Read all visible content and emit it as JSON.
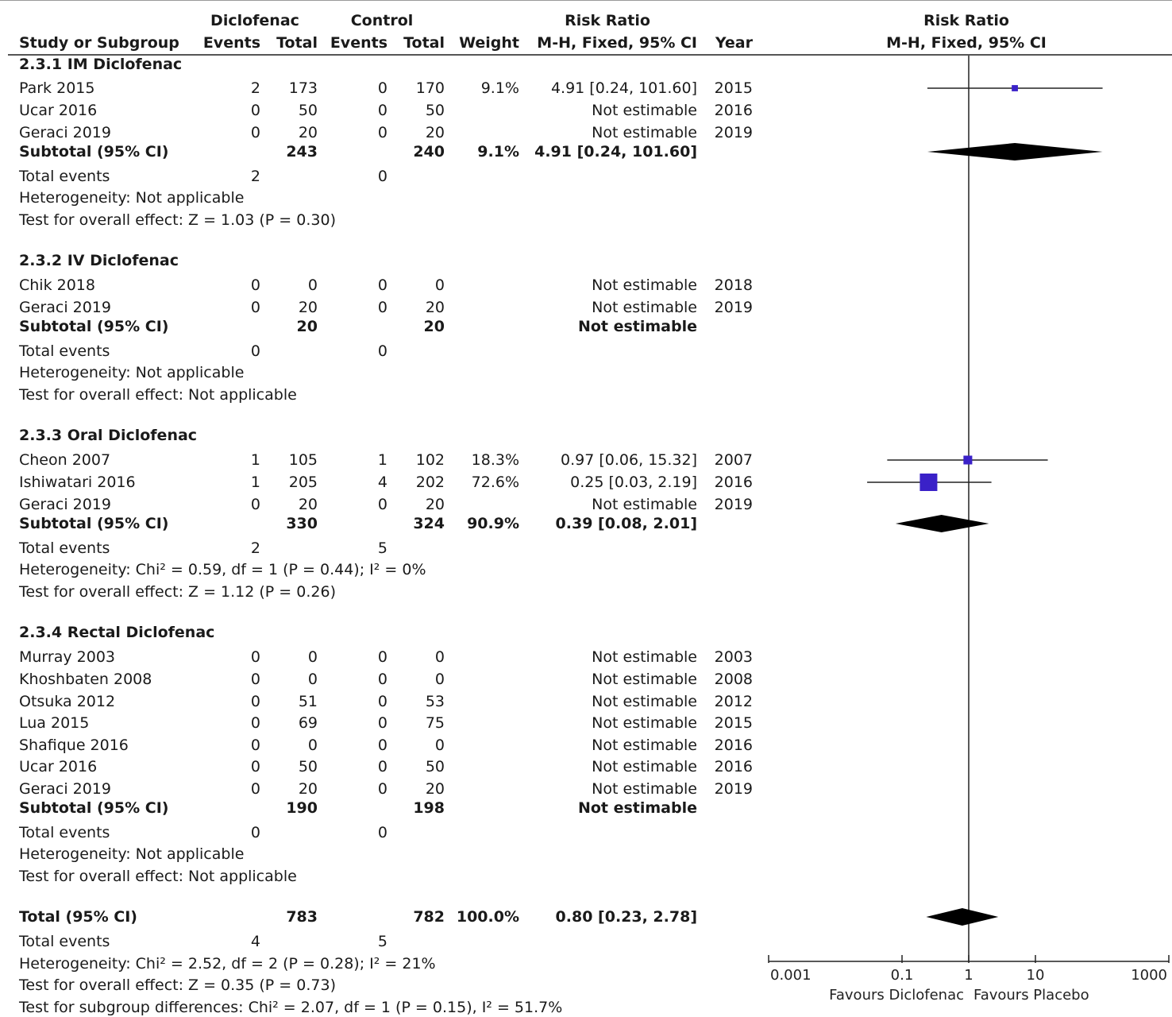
{
  "header": {
    "group1": "Diclofenac",
    "group2": "Control",
    "rr_title": "Risk Ratio",
    "plot_title": "Risk Ratio",
    "plot_method": "M-H, Fixed, 95% CI",
    "col_study": "Study or Subgroup",
    "col_events1": "Events",
    "col_total1": "Total",
    "col_events2": "Events",
    "col_total2": "Total",
    "col_weight": "Weight",
    "col_method": "M-H, Fixed, 95% CI",
    "col_year": "Year"
  },
  "rows": [
    {
      "type": "heading",
      "study": "2.3.1 IM Diclofenac"
    },
    {
      "type": "study",
      "study": "Park 2015",
      "e1": "2",
      "n1": "173",
      "e2": "0",
      "n2": "170",
      "weight": "9.1%",
      "rr": "4.91 [0.24, 101.60]",
      "year": "2015"
    },
    {
      "type": "study",
      "study": "Ucar 2016",
      "e1": "0",
      "n1": "50",
      "e2": "0",
      "n2": "50",
      "weight": "",
      "rr": "Not estimable",
      "year": "2016"
    },
    {
      "type": "study",
      "study": "Geraci 2019",
      "e1": "0",
      "n1": "20",
      "e2": "0",
      "n2": "20",
      "weight": "",
      "rr": "Not estimable",
      "year": "2019"
    },
    {
      "type": "subtotal",
      "study": "Subtotal (95% CI)",
      "n1": "243",
      "n2": "240",
      "weight": "9.1%",
      "rr": "4.91 [0.24, 101.60]"
    },
    {
      "type": "events",
      "study": "Total events",
      "e1": "2",
      "e2": "0"
    },
    {
      "type": "note",
      "study": "Heterogeneity: Not applicable"
    },
    {
      "type": "note",
      "study": "Test for overall effect: Z = 1.03 (P = 0.30)"
    },
    {
      "type": "heading",
      "study": "2.3.2 IV Diclofenac"
    },
    {
      "type": "study",
      "study": "Chik 2018",
      "e1": "0",
      "n1": "0",
      "e2": "0",
      "n2": "0",
      "weight": "",
      "rr": "Not estimable",
      "year": "2018"
    },
    {
      "type": "study",
      "study": "Geraci 2019",
      "e1": "0",
      "n1": "20",
      "e2": "0",
      "n2": "20",
      "weight": "",
      "rr": "Not estimable",
      "year": "2019"
    },
    {
      "type": "subtotal",
      "study": "Subtotal (95% CI)",
      "n1": "20",
      "n2": "20",
      "weight": "",
      "rr": "Not estimable"
    },
    {
      "type": "events",
      "study": "Total events",
      "e1": "0",
      "e2": "0"
    },
    {
      "type": "note",
      "study": "Heterogeneity: Not applicable"
    },
    {
      "type": "note",
      "study": "Test for overall effect: Not applicable"
    },
    {
      "type": "heading",
      "study": "2.3.3 Oral Diclofenac"
    },
    {
      "type": "study",
      "study": "Cheon 2007",
      "e1": "1",
      "n1": "105",
      "e2": "1",
      "n2": "102",
      "weight": "18.3%",
      "rr": "0.97 [0.06, 15.32]",
      "year": "2007"
    },
    {
      "type": "study",
      "study": "Ishiwatari 2016",
      "e1": "1",
      "n1": "205",
      "e2": "4",
      "n2": "202",
      "weight": "72.6%",
      "rr": "0.25 [0.03, 2.19]",
      "year": "2016"
    },
    {
      "type": "study",
      "study": "Geraci 2019",
      "e1": "0",
      "n1": "20",
      "e2": "0",
      "n2": "20",
      "weight": "",
      "rr": "Not estimable",
      "year": "2019"
    },
    {
      "type": "subtotal",
      "study": "Subtotal (95% CI)",
      "n1": "330",
      "n2": "324",
      "weight": "90.9%",
      "rr": "0.39 [0.08, 2.01]"
    },
    {
      "type": "events",
      "study": "Total events",
      "e1": "2",
      "e2": "5"
    },
    {
      "type": "note",
      "study": "Heterogeneity: Chi² = 0.59, df = 1 (P = 0.44); I² = 0%"
    },
    {
      "type": "note",
      "study": "Test for overall effect: Z = 1.12 (P = 0.26)"
    },
    {
      "type": "heading",
      "study": "2.3.4 Rectal Diclofenac"
    },
    {
      "type": "study",
      "study": "Murray 2003",
      "e1": "0",
      "n1": "0",
      "e2": "0",
      "n2": "0",
      "weight": "",
      "rr": "Not estimable",
      "year": "2003"
    },
    {
      "type": "study",
      "study": "Khoshbaten 2008",
      "e1": "0",
      "n1": "0",
      "e2": "0",
      "n2": "0",
      "weight": "",
      "rr": "Not estimable",
      "year": "2008"
    },
    {
      "type": "study",
      "study": "Otsuka 2012",
      "e1": "0",
      "n1": "51",
      "e2": "0",
      "n2": "53",
      "weight": "",
      "rr": "Not estimable",
      "year": "2012"
    },
    {
      "type": "study",
      "study": "Lua 2015",
      "e1": "0",
      "n1": "69",
      "e2": "0",
      "n2": "75",
      "weight": "",
      "rr": "Not estimable",
      "year": "2015"
    },
    {
      "type": "study",
      "study": "Shafique 2016",
      "e1": "0",
      "n1": "0",
      "e2": "0",
      "n2": "0",
      "weight": "",
      "rr": "Not estimable",
      "year": "2016"
    },
    {
      "type": "study",
      "study": "Ucar 2016",
      "e1": "0",
      "n1": "50",
      "e2": "0",
      "n2": "50",
      "weight": "",
      "rr": "Not estimable",
      "year": "2016"
    },
    {
      "type": "study",
      "study": "Geraci 2019",
      "e1": "0",
      "n1": "20",
      "e2": "0",
      "n2": "20",
      "weight": "",
      "rr": "Not estimable",
      "year": "2019"
    },
    {
      "type": "subtotal",
      "study": "Subtotal (95% CI)",
      "n1": "190",
      "n2": "198",
      "weight": "",
      "rr": "Not estimable"
    },
    {
      "type": "events",
      "study": "Total events",
      "e1": "0",
      "e2": "0"
    },
    {
      "type": "note",
      "study": "Heterogeneity: Not applicable"
    },
    {
      "type": "note",
      "study": "Test for overall effect: Not applicable"
    },
    {
      "type": "total",
      "study": "Total (95% CI)",
      "n1": "783",
      "n2": "782",
      "weight": "100.0%",
      "rr": "0.80 [0.23, 2.78]"
    },
    {
      "type": "events",
      "study": "Total events",
      "e1": "4",
      "e2": "5"
    },
    {
      "type": "note",
      "study": "Heterogeneity: Chi² = 2.52, df = 2 (P = 0.28); I² = 21%"
    },
    {
      "type": "note",
      "study": "Test for overall effect: Z = 0.35 (P = 0.73)"
    },
    {
      "type": "note",
      "study": "Test for subgroup differences: Chi² = 2.07, df = 1 (P = 0.15), I² = 51.7%"
    }
  ],
  "chart_data": {
    "type": "scatter",
    "scale": "log",
    "xlim": [
      0.001,
      1000
    ],
    "ticks": [
      "0.001",
      "0.1",
      "1",
      "10",
      "1000"
    ],
    "xlabel_left": "Favours Diclofenac",
    "xlabel_right": "Favours Placebo",
    "studies": [
      {
        "study": "Park 2015",
        "rr": 4.91,
        "lo": 0.24,
        "hi": 101.6,
        "weight": 9.1
      },
      {
        "study": "Cheon 2007",
        "rr": 0.97,
        "lo": 0.06,
        "hi": 15.32,
        "weight": 18.3
      },
      {
        "study": "Ishiwatari 2016",
        "rr": 0.25,
        "lo": 0.03,
        "hi": 2.19,
        "weight": 72.6
      }
    ],
    "diamonds": [
      {
        "name": "Subtotal 2.3.1",
        "rr": 4.91,
        "lo": 0.24,
        "hi": 101.6
      },
      {
        "name": "Subtotal 2.3.3",
        "rr": 0.39,
        "lo": 0.08,
        "hi": 2.01
      },
      {
        "name": "Total",
        "rr": 0.8,
        "lo": 0.23,
        "hi": 2.78
      }
    ]
  },
  "colors": {
    "box": "#3a21c8",
    "diamond": "#000000",
    "line": "#222222"
  }
}
